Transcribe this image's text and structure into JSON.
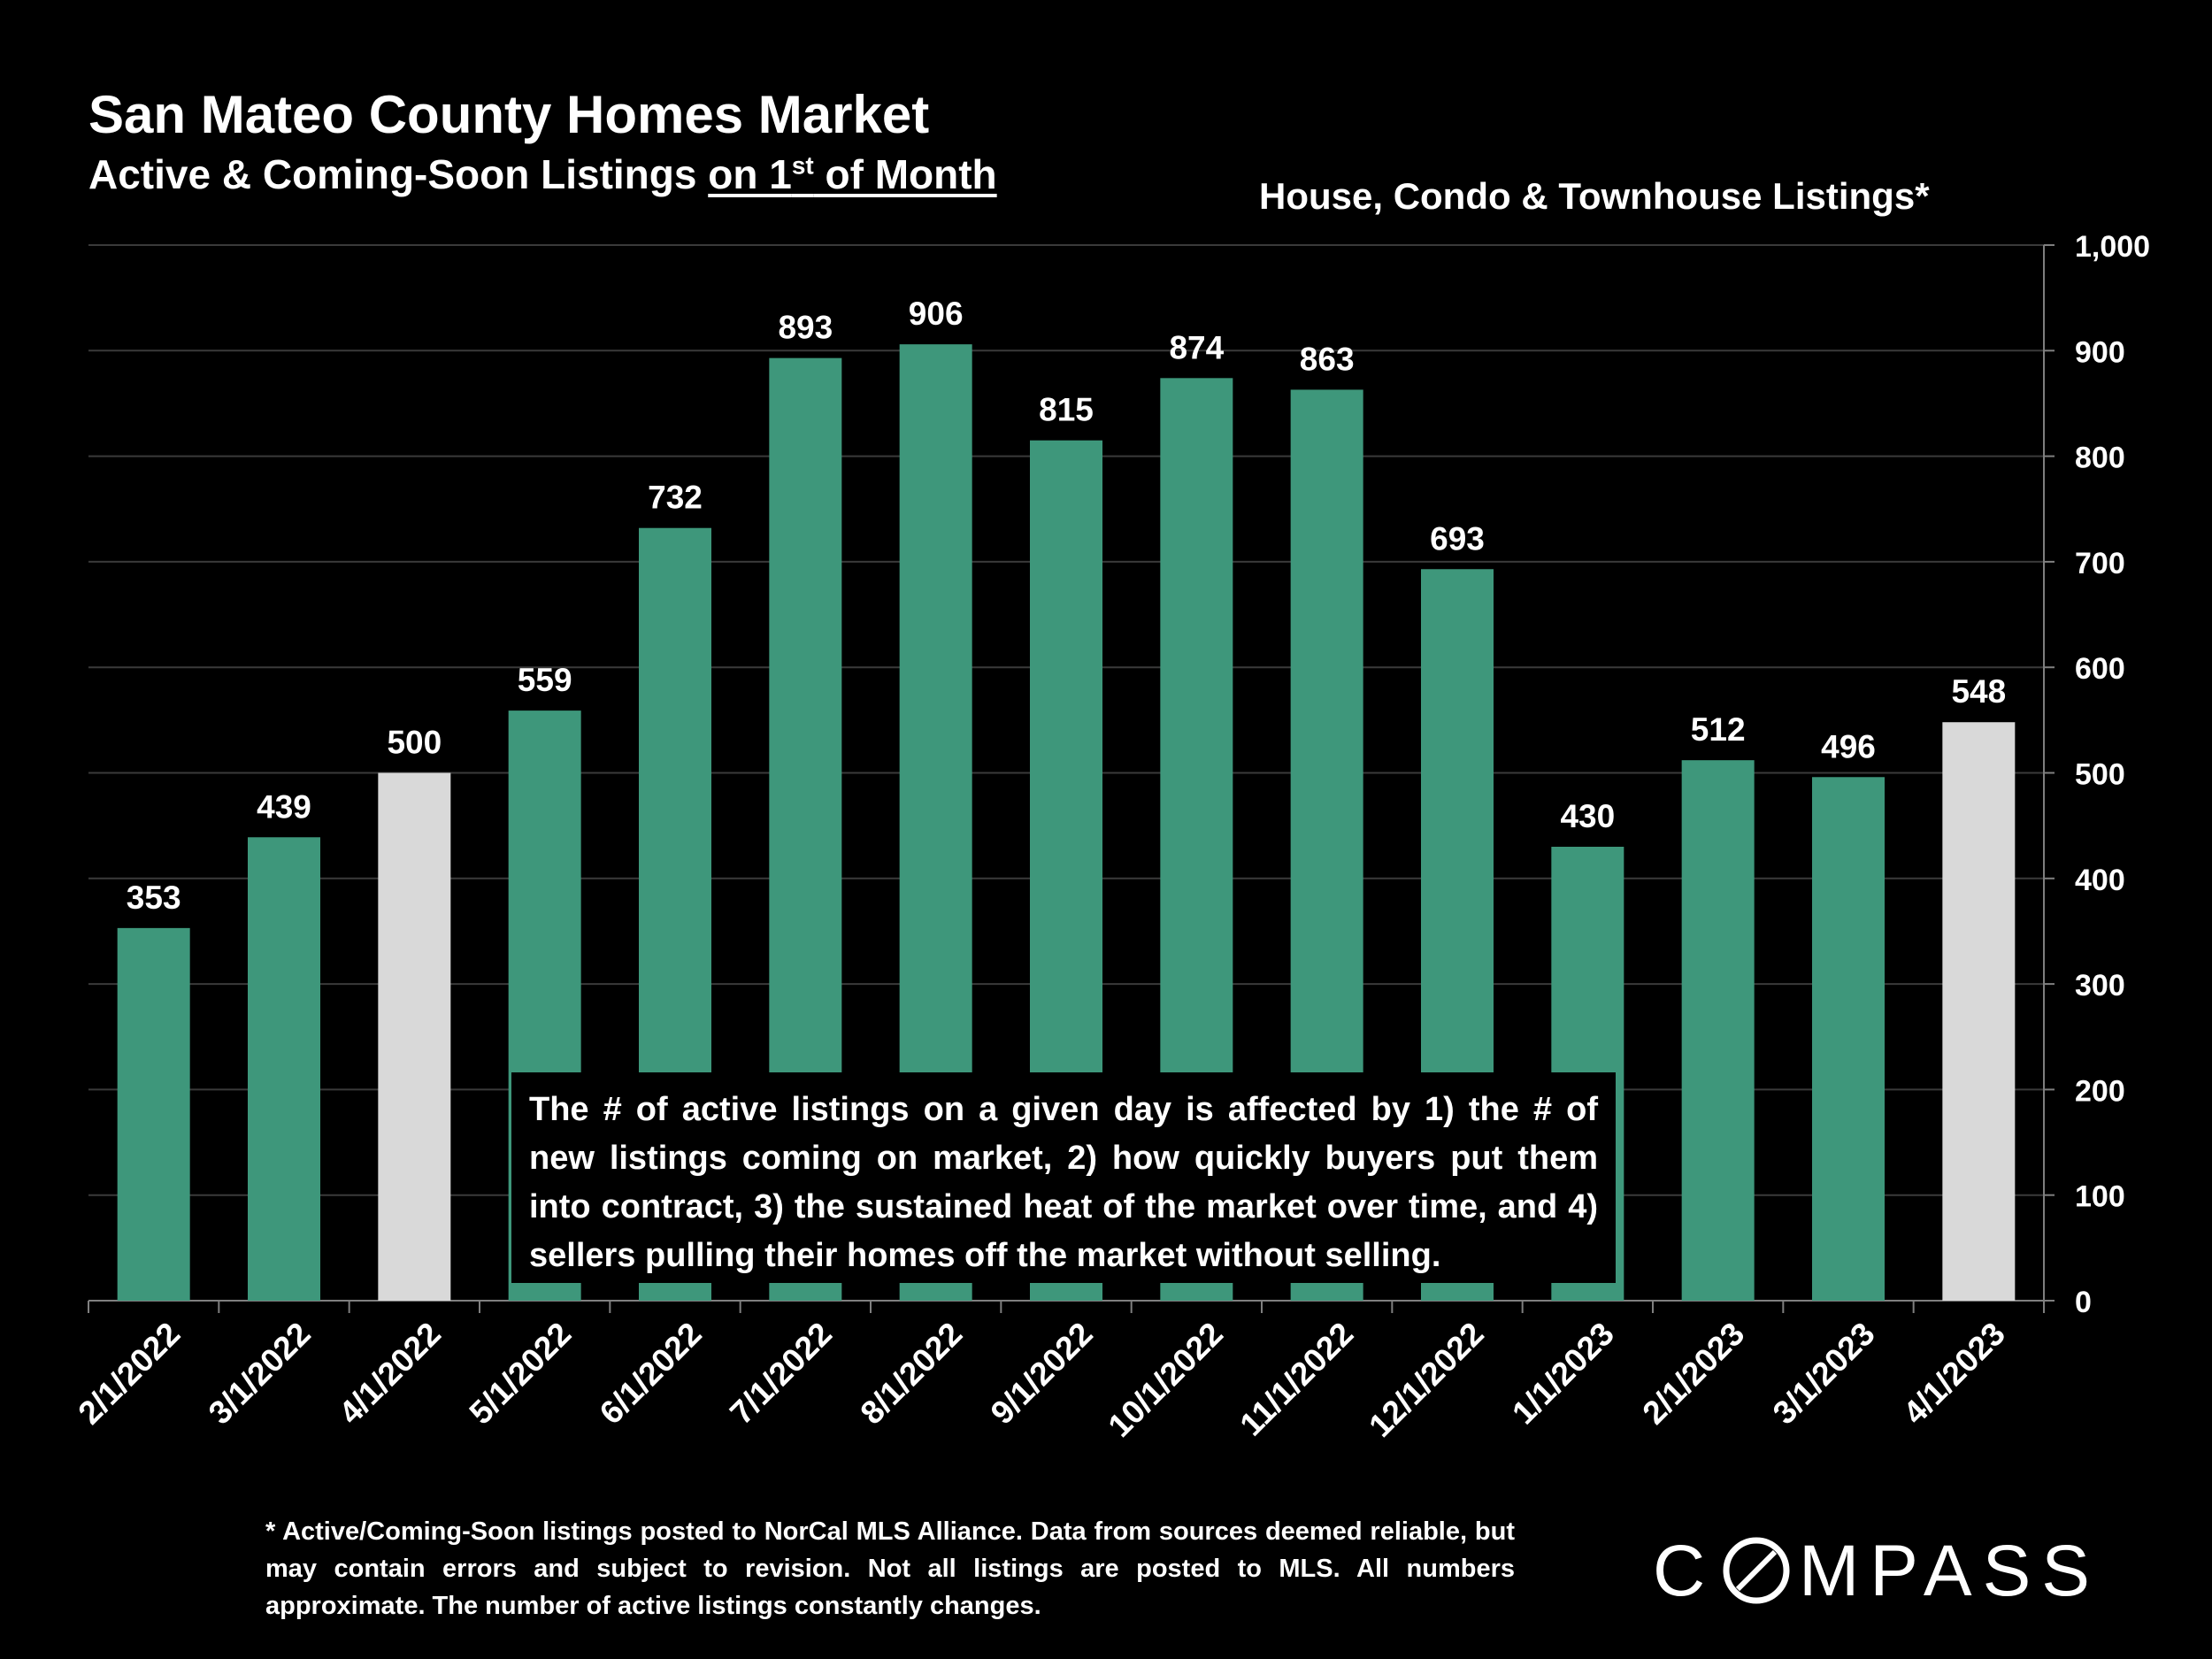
{
  "header": {
    "title": "San Mateo County Homes Market",
    "subtitle_main": "Active & Coming-Soon Listings ",
    "subtitle_on": "on 1",
    "subtitle_sup": "st",
    "subtitle_tail": " of Month",
    "chart_label": "House, Condo & Townhouse Listings*"
  },
  "chart_data": {
    "type": "bar",
    "categories": [
      "2/1/2022",
      "3/1/2022",
      "4/1/2022",
      "5/1/2022",
      "6/1/2022",
      "7/1/2022",
      "8/1/2022",
      "9/1/2022",
      "10/1/2022",
      "11/1/2022",
      "12/1/2022",
      "1/1/2023",
      "2/1/2023",
      "3/1/2023",
      "4/1/2023"
    ],
    "values": [
      353,
      439,
      500,
      559,
      732,
      893,
      906,
      815,
      874,
      863,
      693,
      430,
      512,
      496,
      548
    ],
    "highlighted": [
      "4/1/2022",
      "4/1/2023"
    ],
    "ylim": [
      0,
      1000
    ],
    "y_ticks": [
      0,
      100,
      200,
      300,
      400,
      500,
      600,
      700,
      800,
      900,
      1000
    ],
    "y_axis_side": "right",
    "grid": true,
    "colors": {
      "bar": "#3e977b",
      "highlight": "#d9d9d9",
      "grid": "#3a3a3a",
      "axis": "#7f7f7f"
    }
  },
  "annotation": {
    "text": "The # of active listings on a given day is affected by 1) the # of new listings coming on market, 2) how quickly buyers put them into contract, 3) the sustained heat of the market over time, and 4) sellers pulling their homes off the market without selling."
  },
  "footnote": "* Active/Coming-Soon listings posted to NorCal MLS Alliance. Data from sources deemed reliable, but may contain errors and subject to revision. Not all listings are posted to MLS. All numbers approximate. The number of active listings constantly changes.",
  "logo": {
    "brand": "COMPASS"
  }
}
